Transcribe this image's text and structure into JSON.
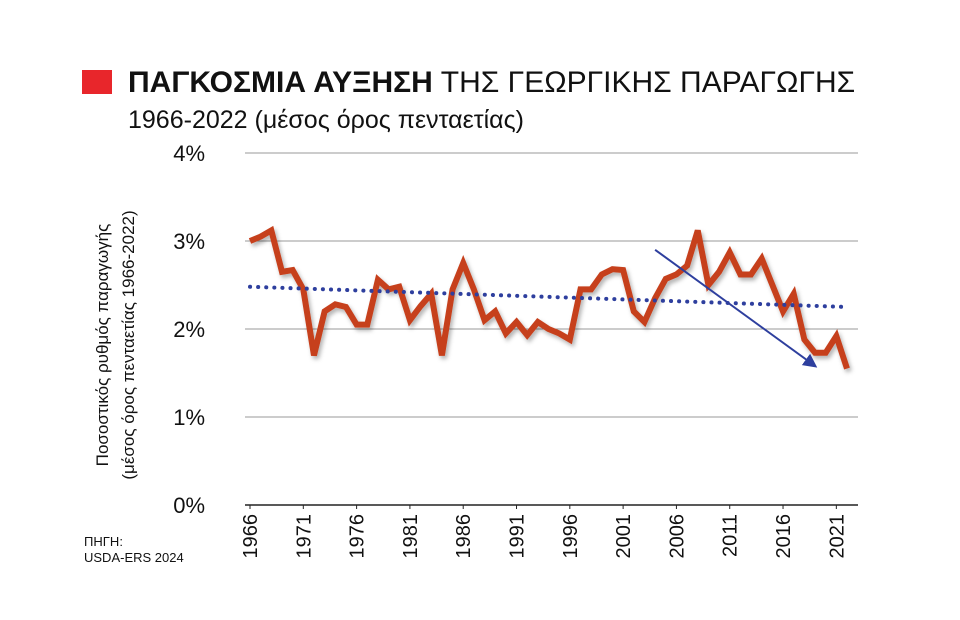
{
  "chart_data": {
    "type": "line",
    "title": "ΠΑΓΚΟΣΜΙΑ ΑΥΞΗΣΗ",
    "title_continued": "ΤΗΣ ΓΕΩΡΓΙΚΗΣ ΠΑΡΑΓΩΓΗΣ",
    "subtitle": "1966-2022 (μέσος όρος πενταετίας)",
    "y_label": [
      "Ποσοστικός ρυθμός παραγωγής",
      "(μέσος όρος πενταετίας 1966-2022)"
    ],
    "source": [
      "ΠΗΓΗ:",
      "USDA-ERS 2024"
    ],
    "title_marker_color": "#e8262b",
    "x": [
      1966,
      1967,
      1968,
      1969,
      1970,
      1971,
      1972,
      1973,
      1974,
      1975,
      1976,
      1977,
      1978,
      1979,
      1980,
      1981,
      1982,
      1983,
      1984,
      1985,
      1986,
      1987,
      1988,
      1989,
      1990,
      1991,
      1992,
      1993,
      1994,
      1995,
      1996,
      1997,
      1998,
      1999,
      2000,
      2001,
      2002,
      2003,
      2004,
      2005,
      2006,
      2007,
      2008,
      2009,
      2010,
      2011,
      2012,
      2013,
      2014,
      2015,
      2016,
      2017,
      2018,
      2019,
      2020,
      2021,
      2022
    ],
    "series": [
      {
        "color": "#c63f1c",
        "values": [
          3.0,
          3.05,
          3.12,
          2.65,
          2.67,
          2.45,
          1.7,
          2.2,
          2.28,
          2.25,
          2.05,
          2.05,
          2.56,
          2.45,
          2.48,
          2.1,
          2.26,
          2.4,
          1.7,
          2.45,
          2.75,
          2.45,
          2.1,
          2.2,
          1.95,
          2.08,
          1.93,
          2.08,
          2.0,
          1.95,
          1.88,
          2.45,
          2.45,
          2.62,
          2.68,
          2.67,
          2.2,
          2.08,
          2.35,
          2.57,
          2.62,
          2.72,
          3.12,
          2.5,
          2.65,
          2.87,
          2.62,
          2.62,
          2.8,
          2.5,
          2.2,
          2.4,
          1.88,
          1.73,
          1.73,
          1.92,
          1.55
        ]
      }
    ],
    "trend_line": {
      "color": "#2e3f9e",
      "x": [
        1966,
        2022
      ],
      "values": [
        2.48,
        2.25
      ]
    },
    "arrow": {
      "color": "#2e3f9e",
      "x": [
        2004,
        2019
      ],
      "values": [
        2.9,
        1.58
      ]
    },
    "xlim": [
      1966,
      2022
    ],
    "xticks": [
      1966,
      1971,
      1976,
      1981,
      1986,
      1991,
      1996,
      2001,
      2006,
      2011,
      2016,
      2021
    ],
    "ylim": [
      0,
      4
    ],
    "yticks": [
      {
        "value": 0,
        "label": "0%"
      },
      {
        "value": 1,
        "label": "1%"
      },
      {
        "value": 2,
        "label": "2%"
      },
      {
        "value": 3,
        "label": "3%"
      },
      {
        "value": 4,
        "label": "4%"
      }
    ],
    "grid": true
  }
}
